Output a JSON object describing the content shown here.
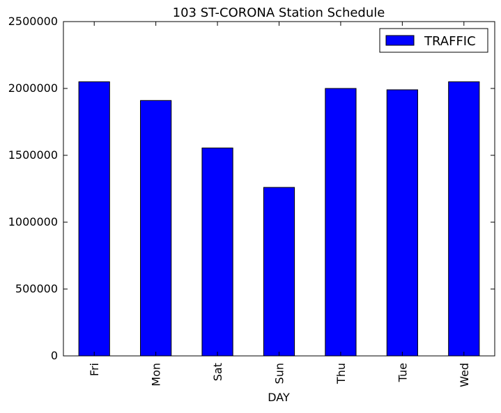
{
  "chart_data": {
    "type": "bar",
    "title": "103 ST-CORONA Station Schedule",
    "xlabel": "DAY",
    "ylabel": "",
    "categories": [
      "Fri",
      "Mon",
      "Sat",
      "Sun",
      "Thu",
      "Tue",
      "Wed"
    ],
    "series": [
      {
        "name": "TRAFFIC",
        "values": [
          2050000,
          1910000,
          1555000,
          1260000,
          2000000,
          1990000,
          2050000
        ]
      }
    ],
    "ylim": [
      0,
      2500000
    ],
    "yticks": [
      0,
      500000,
      1000000,
      1500000,
      2000000,
      2500000
    ],
    "ytick_labels": [
      "0",
      "500000",
      "1000000",
      "1500000",
      "2000000",
      "2500000"
    ],
    "grid": false,
    "legend_position": "top-right",
    "colors": {
      "bar_fill": "#0000ff",
      "bar_edge": "#000000",
      "axis": "#000000",
      "background": "#ffffff"
    }
  }
}
